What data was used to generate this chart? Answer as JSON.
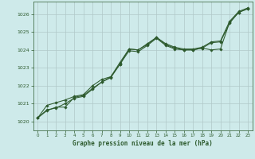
{
  "title": "Graphe pression niveau de la mer (hPa)",
  "background_color": "#ceeaea",
  "grid_color": "#b0c8c8",
  "line_color": "#2d5a2d",
  "xlim": [
    -0.5,
    23.5
  ],
  "ylim": [
    1019.5,
    1026.7
  ],
  "yticks": [
    1020,
    1021,
    1022,
    1023,
    1024,
    1025,
    1026
  ],
  "xticks": [
    0,
    1,
    2,
    3,
    4,
    5,
    6,
    7,
    8,
    9,
    10,
    11,
    12,
    13,
    14,
    15,
    16,
    17,
    18,
    19,
    20,
    21,
    22,
    23
  ],
  "series": [
    [
      1020.2,
      1020.6,
      1020.8,
      1020.8,
      1021.35,
      1021.45,
      1021.85,
      1022.2,
      1022.5,
      1023.2,
      1024.05,
      1024.0,
      1024.3,
      1024.7,
      1024.3,
      1024.1,
      1024.0,
      1024.0,
      1024.1,
      1024.0,
      1024.05,
      1025.55,
      1026.1,
      1026.3
    ],
    [
      1020.2,
      1020.9,
      1021.05,
      1021.2,
      1021.4,
      1021.5,
      1022.0,
      1022.35,
      1022.5,
      1023.3,
      1024.05,
      1024.0,
      1024.35,
      1024.7,
      1024.35,
      1024.15,
      1024.05,
      1024.05,
      1024.15,
      1024.45,
      1024.5,
      1025.6,
      1026.15,
      1026.35
    ],
    [
      1020.2,
      1020.65,
      1020.75,
      1021.0,
      1021.3,
      1021.4,
      1021.8,
      1022.2,
      1022.45,
      1023.2,
      1023.95,
      1023.9,
      1024.25,
      1024.65,
      1024.25,
      1024.05,
      1024.0,
      1024.0,
      1024.1,
      1024.4,
      1024.45,
      1025.5,
      1026.1,
      1026.3
    ]
  ]
}
